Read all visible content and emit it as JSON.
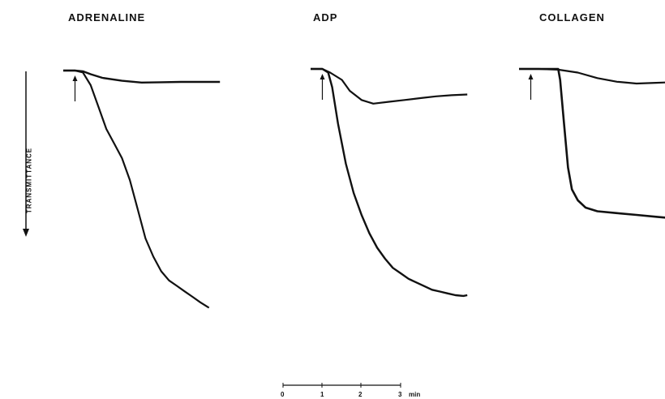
{
  "chart_data": {
    "type": "line",
    "y_axis": {
      "label": "TRANSMITTANCE",
      "direction": "down"
    },
    "time_scale": {
      "ticks": [
        "0",
        "1",
        "2",
        "3"
      ],
      "unit": "min"
    },
    "panels": [
      {
        "title": "ADRENALINE",
        "series": [
          {
            "x": [
              0,
              0.3,
              0.5,
              0.7,
              1.0,
              1.5,
              2.0,
              2.5,
              3.0,
              3.5,
              4.0
            ],
            "y": [
              0,
              0,
              -0.02,
              -0.1,
              -0.2,
              -0.28,
              -0.33,
              -0.32,
              -0.31,
              -0.31,
              -0.31
            ]
          },
          {
            "x": [
              0,
              0.3,
              0.5,
              0.7,
              0.9,
              1.1,
              1.3,
              1.5,
              1.7,
              1.9,
              2.1,
              2.3,
              2.5,
              2.7,
              2.9,
              3.1,
              3.3,
              3.5,
              3.72
            ],
            "y": [
              0,
              0,
              -0.05,
              -0.4,
              -1.0,
              -1.6,
              -2.0,
              -2.4,
              -3.0,
              -3.8,
              -4.6,
              -5.1,
              -5.5,
              -5.75,
              -5.9,
              -6.05,
              -6.2,
              -6.35,
              -6.5
            ]
          }
        ],
        "arrow_x": 0.3
      },
      {
        "title": "ADP",
        "series": [
          {
            "x": [
              0,
              0.3,
              0.5,
              0.8,
              1.0,
              1.3,
              1.6,
              2.0,
              2.4,
              2.8,
              3.2,
              3.6,
              4.0
            ],
            "y": [
              0,
              0,
              -0.1,
              -0.3,
              -0.6,
              -0.85,
              -0.95,
              -0.9,
              -0.85,
              -0.8,
              -0.75,
              -0.72,
              -0.7
            ]
          },
          {
            "x": [
              0,
              0.3,
              0.45,
              0.55,
              0.7,
              0.9,
              1.1,
              1.3,
              1.5,
              1.7,
              1.9,
              2.1,
              2.3,
              2.5,
              2.7,
              2.9,
              3.1,
              3.3,
              3.5,
              3.7,
              3.9,
              4.0
            ],
            "y": [
              0,
              0,
              -0.1,
              -0.5,
              -1.5,
              -2.6,
              -3.4,
              -4.0,
              -4.5,
              -4.9,
              -5.2,
              -5.45,
              -5.6,
              -5.75,
              -5.85,
              -5.95,
              -6.05,
              -6.1,
              -6.15,
              -6.2,
              -6.22,
              -6.2
            ]
          }
        ],
        "arrow_x": 0.3
      },
      {
        "title": "COLLAGEN",
        "series": [
          {
            "x": [
              0,
              0.5,
              1.0,
              1.5,
              2.0,
              2.5,
              3.0,
              3.5,
              4.0,
              4.5,
              5.0
            ],
            "y": [
              0,
              0,
              -0.02,
              -0.1,
              -0.25,
              -0.35,
              -0.4,
              -0.38,
              -0.36,
              -0.35,
              -0.35
            ]
          },
          {
            "x": [
              0,
              0.5,
              1.0,
              1.05,
              1.15,
              1.25,
              1.35,
              1.5,
              1.7,
              2.0,
              2.5,
              3.0,
              3.5,
              4.0,
              4.5,
              5.0
            ],
            "y": [
              0,
              0,
              0,
              -0.3,
              -1.5,
              -2.7,
              -3.3,
              -3.6,
              -3.8,
              -3.9,
              -3.95,
              -4.0,
              -4.05,
              -4.1,
              -4.1,
              -4.12
            ]
          }
        ],
        "arrow_x": 0.3
      }
    ]
  }
}
